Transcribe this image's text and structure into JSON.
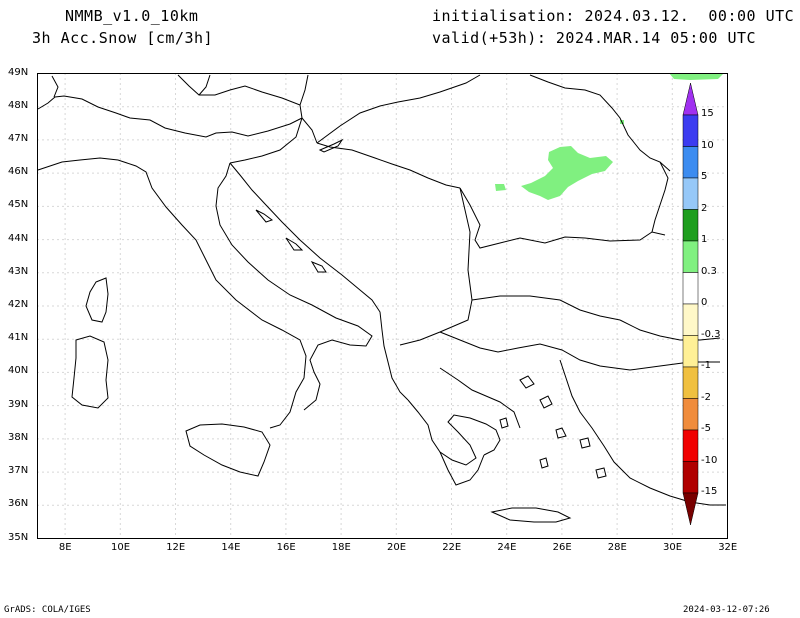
{
  "header": {
    "model": "NMMB_v1.0_10km",
    "variable": "3h Acc.Snow [cm/3h]",
    "init": "initialisation: 2024.03.12.  00:00 UTC",
    "valid": "valid(+53h): 2024.MAR.14 05:00 UTC"
  },
  "map": {
    "lat_labels": [
      "49N",
      "48N",
      "47N",
      "46N",
      "45N",
      "44N",
      "43N",
      "42N",
      "41N",
      "40N",
      "39N",
      "38N",
      "37N",
      "36N",
      "35N"
    ],
    "lon_labels": [
      "8E",
      "10E",
      "12E",
      "14E",
      "16E",
      "18E",
      "20E",
      "22E",
      "24E",
      "26E",
      "28E",
      "30E",
      "32E"
    ],
    "lon_range": [
      7,
      32
    ],
    "lat_range": [
      35,
      49
    ],
    "snow_color": "#80f080"
  },
  "legend": {
    "labels": [
      "15",
      "10",
      "5",
      "2",
      "1",
      "0.3",
      "0",
      "-0.3",
      "-1",
      "-2",
      "-5",
      "-10",
      "-15"
    ],
    "colors": [
      "#a030f0",
      "#3c3cf0",
      "#3c8cf0",
      "#96c8f8",
      "#1e9e1e",
      "#80f080",
      "#ffffff",
      "#fff8c8",
      "#fff096",
      "#f0c040",
      "#f08c3c",
      "#f00000",
      "#b00000",
      "#780000"
    ]
  },
  "footer": {
    "left": "GrADS: COLA/IGES",
    "right": "2024-03-12-07:26"
  }
}
